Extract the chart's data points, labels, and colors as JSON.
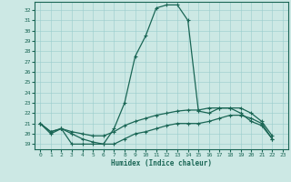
{
  "xlabel": "Humidex (Indice chaleur)",
  "background_color": "#cce8e4",
  "grid_color": "#99cccc",
  "line_color": "#1a6655",
  "xlim": [
    -0.5,
    23.5
  ],
  "ylim": [
    18.5,
    32.8
  ],
  "xticks": [
    0,
    1,
    2,
    3,
    4,
    5,
    6,
    7,
    8,
    9,
    10,
    11,
    12,
    13,
    14,
    15,
    16,
    17,
    18,
    19,
    20,
    21,
    22,
    23
  ],
  "yticks": [
    19,
    20,
    21,
    22,
    23,
    24,
    25,
    26,
    27,
    28,
    29,
    30,
    31,
    32
  ],
  "series1_x": [
    0,
    1,
    2,
    3,
    4,
    5,
    6,
    7,
    8,
    9,
    10,
    11,
    12,
    13,
    14,
    15,
    16,
    17,
    18,
    19,
    20,
    21,
    22
  ],
  "series1_y": [
    21.0,
    20.0,
    20.5,
    19.0,
    19.0,
    19.0,
    19.0,
    20.5,
    23.0,
    27.5,
    29.5,
    32.2,
    32.5,
    32.5,
    31.0,
    22.2,
    22.0,
    22.5,
    22.5,
    22.0,
    21.2,
    20.8,
    19.5
  ],
  "series2_x": [
    0,
    1,
    2,
    3,
    4,
    5,
    6,
    7,
    8,
    9,
    10,
    11,
    12,
    13,
    14,
    15,
    16,
    17,
    18,
    19,
    20,
    21,
    22
  ],
  "series2_y": [
    21.0,
    20.2,
    20.5,
    20.2,
    20.0,
    19.8,
    19.8,
    20.2,
    20.8,
    21.2,
    21.5,
    21.8,
    22.0,
    22.2,
    22.3,
    22.3,
    22.5,
    22.5,
    22.5,
    22.5,
    22.0,
    21.2,
    19.8
  ],
  "series3_x": [
    0,
    1,
    2,
    3,
    4,
    5,
    6,
    7,
    8,
    9,
    10,
    11,
    12,
    13,
    14,
    15,
    16,
    17,
    18,
    19,
    20,
    21,
    22
  ],
  "series3_y": [
    21.0,
    20.2,
    20.5,
    20.0,
    19.5,
    19.2,
    19.0,
    19.0,
    19.5,
    20.0,
    20.2,
    20.5,
    20.8,
    21.0,
    21.0,
    21.0,
    21.2,
    21.5,
    21.8,
    21.8,
    21.5,
    21.0,
    19.5
  ]
}
